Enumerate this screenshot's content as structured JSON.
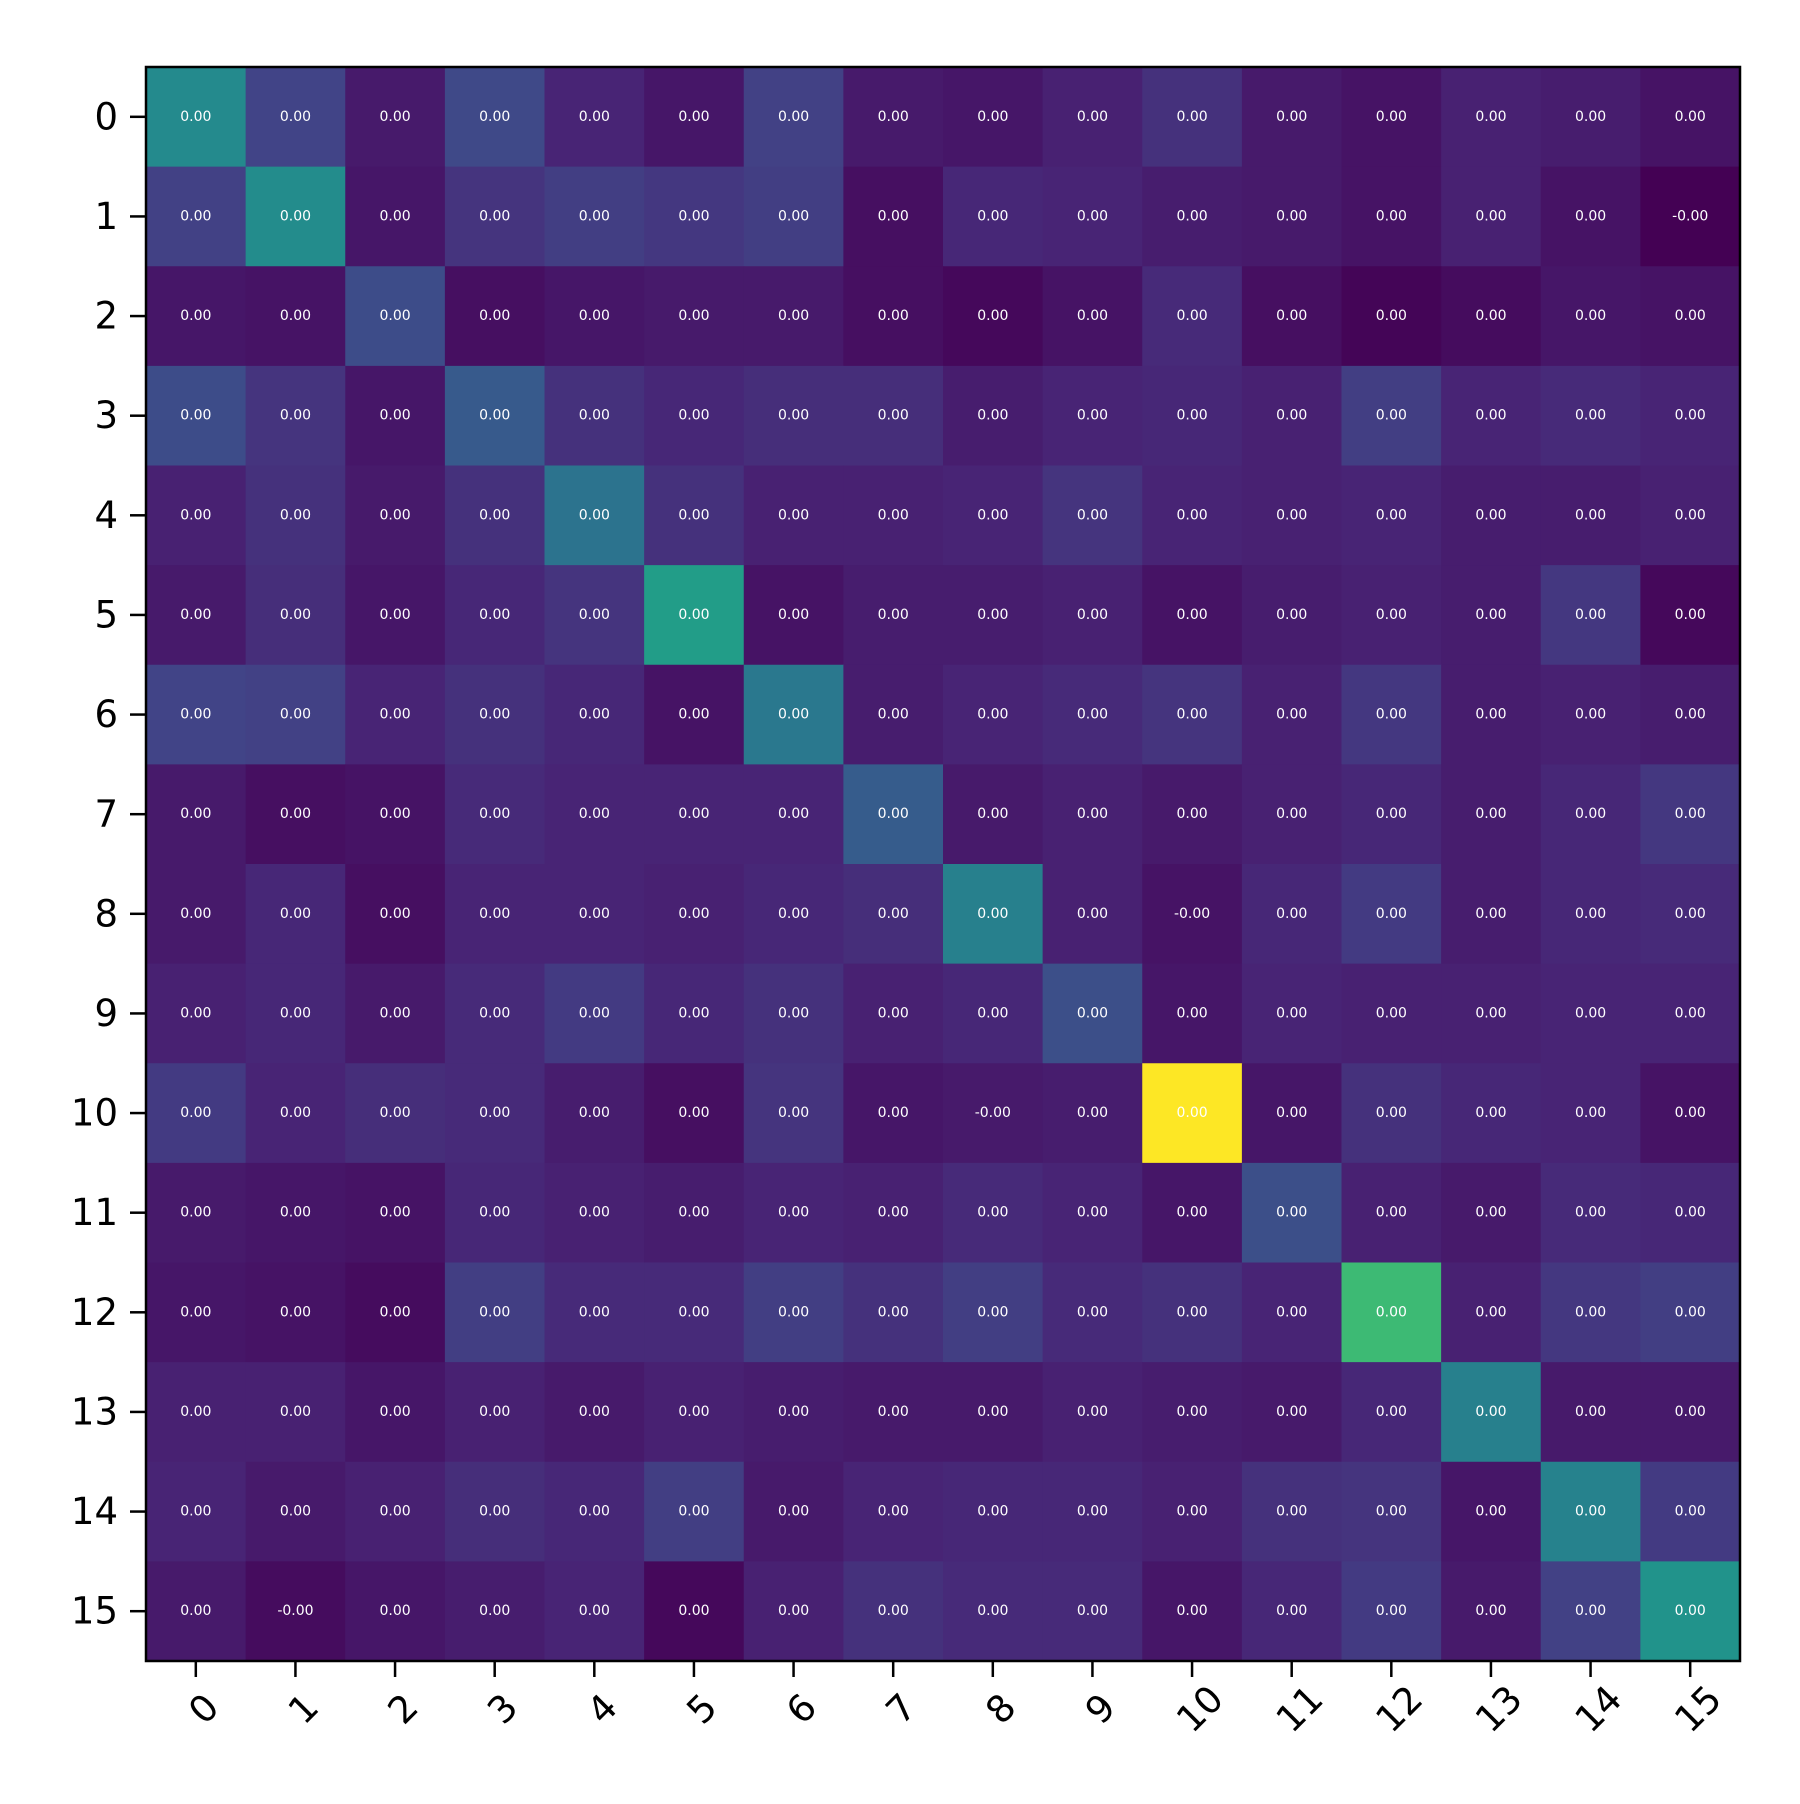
{
  "chart_data": {
    "type": "heatmap",
    "title": "",
    "xlabel": "",
    "ylabel": "",
    "x_tick_labels": [
      "0",
      "1",
      "2",
      "3",
      "4",
      "5",
      "6",
      "7",
      "8",
      "9",
      "10",
      "11",
      "12",
      "13",
      "14",
      "15"
    ],
    "y_tick_labels": [
      "0",
      "1",
      "2",
      "3",
      "4",
      "5",
      "6",
      "7",
      "8",
      "9",
      "10",
      "11",
      "12",
      "13",
      "14",
      "15"
    ],
    "x_tick_rotation_deg": 45,
    "colormap": "viridis",
    "colorbar": false,
    "grid": false,
    "value_range": [
      0,
      1
    ],
    "cell_labels": [
      [
        "0.00",
        "0.00",
        "0.00",
        "0.00",
        "0.00",
        "0.00",
        "0.00",
        "0.00",
        "0.00",
        "0.00",
        "0.00",
        "0.00",
        "0.00",
        "0.00",
        "0.00",
        "0.00"
      ],
      [
        "0.00",
        "0.00",
        "0.00",
        "0.00",
        "0.00",
        "0.00",
        "0.00",
        "0.00",
        "0.00",
        "0.00",
        "0.00",
        "0.00",
        "0.00",
        "0.00",
        "0.00",
        "-0.00"
      ],
      [
        "0.00",
        "0.00",
        "0.00",
        "0.00",
        "0.00",
        "0.00",
        "0.00",
        "0.00",
        "0.00",
        "0.00",
        "0.00",
        "0.00",
        "0.00",
        "0.00",
        "0.00",
        "0.00"
      ],
      [
        "0.00",
        "0.00",
        "0.00",
        "0.00",
        "0.00",
        "0.00",
        "0.00",
        "0.00",
        "0.00",
        "0.00",
        "0.00",
        "0.00",
        "0.00",
        "0.00",
        "0.00",
        "0.00"
      ],
      [
        "0.00",
        "0.00",
        "0.00",
        "0.00",
        "0.00",
        "0.00",
        "0.00",
        "0.00",
        "0.00",
        "0.00",
        "0.00",
        "0.00",
        "0.00",
        "0.00",
        "0.00",
        "0.00"
      ],
      [
        "0.00",
        "0.00",
        "0.00",
        "0.00",
        "0.00",
        "0.00",
        "0.00",
        "0.00",
        "0.00",
        "0.00",
        "0.00",
        "0.00",
        "0.00",
        "0.00",
        "0.00",
        "0.00"
      ],
      [
        "0.00",
        "0.00",
        "0.00",
        "0.00",
        "0.00",
        "0.00",
        "0.00",
        "0.00",
        "0.00",
        "0.00",
        "0.00",
        "0.00",
        "0.00",
        "0.00",
        "0.00",
        "0.00"
      ],
      [
        "0.00",
        "0.00",
        "0.00",
        "0.00",
        "0.00",
        "0.00",
        "0.00",
        "0.00",
        "0.00",
        "0.00",
        "0.00",
        "0.00",
        "0.00",
        "0.00",
        "0.00",
        "0.00"
      ],
      [
        "0.00",
        "0.00",
        "0.00",
        "0.00",
        "0.00",
        "0.00",
        "0.00",
        "0.00",
        "0.00",
        "0.00",
        "-0.00",
        "0.00",
        "0.00",
        "0.00",
        "0.00",
        "0.00"
      ],
      [
        "0.00",
        "0.00",
        "0.00",
        "0.00",
        "0.00",
        "0.00",
        "0.00",
        "0.00",
        "0.00",
        "0.00",
        "0.00",
        "0.00",
        "0.00",
        "0.00",
        "0.00",
        "0.00"
      ],
      [
        "0.00",
        "0.00",
        "0.00",
        "0.00",
        "0.00",
        "0.00",
        "0.00",
        "0.00",
        "-0.00",
        "0.00",
        "0.00",
        "0.00",
        "0.00",
        "0.00",
        "0.00",
        "0.00"
      ],
      [
        "0.00",
        "0.00",
        "0.00",
        "0.00",
        "0.00",
        "0.00",
        "0.00",
        "0.00",
        "0.00",
        "0.00",
        "0.00",
        "0.00",
        "0.00",
        "0.00",
        "0.00",
        "0.00"
      ],
      [
        "0.00",
        "0.00",
        "0.00",
        "0.00",
        "0.00",
        "0.00",
        "0.00",
        "0.00",
        "0.00",
        "0.00",
        "0.00",
        "0.00",
        "0.00",
        "0.00",
        "0.00",
        "0.00"
      ],
      [
        "0.00",
        "0.00",
        "0.00",
        "0.00",
        "0.00",
        "0.00",
        "0.00",
        "0.00",
        "0.00",
        "0.00",
        "0.00",
        "0.00",
        "0.00",
        "0.00",
        "0.00",
        "0.00"
      ],
      [
        "0.00",
        "0.00",
        "0.00",
        "0.00",
        "0.00",
        "0.00",
        "0.00",
        "0.00",
        "0.00",
        "0.00",
        "0.00",
        "0.00",
        "0.00",
        "0.00",
        "0.00",
        "0.00"
      ],
      [
        "0.00",
        "-0.00",
        "0.00",
        "0.00",
        "0.00",
        "0.00",
        "0.00",
        "0.00",
        "0.00",
        "0.00",
        "0.00",
        "0.00",
        "0.00",
        "0.00",
        "0.00",
        "0.00"
      ]
    ],
    "relative_intensity": [
      [
        0.47,
        0.2,
        0.07,
        0.22,
        0.1,
        0.06,
        0.19,
        0.07,
        0.06,
        0.09,
        0.14,
        0.07,
        0.05,
        0.09,
        0.08,
        0.05
      ],
      [
        0.19,
        0.48,
        0.06,
        0.15,
        0.18,
        0.16,
        0.18,
        0.04,
        0.11,
        0.1,
        0.08,
        0.07,
        0.05,
        0.09,
        0.05,
        0.0
      ],
      [
        0.06,
        0.05,
        0.23,
        0.04,
        0.06,
        0.07,
        0.07,
        0.04,
        0.02,
        0.05,
        0.12,
        0.04,
        0.01,
        0.03,
        0.06,
        0.05
      ],
      [
        0.23,
        0.15,
        0.06,
        0.28,
        0.14,
        0.11,
        0.13,
        0.13,
        0.08,
        0.1,
        0.11,
        0.09,
        0.18,
        0.1,
        0.12,
        0.1
      ],
      [
        0.09,
        0.14,
        0.07,
        0.14,
        0.38,
        0.14,
        0.09,
        0.09,
        0.1,
        0.15,
        0.1,
        0.09,
        0.1,
        0.08,
        0.08,
        0.09
      ],
      [
        0.07,
        0.13,
        0.06,
        0.11,
        0.15,
        0.55,
        0.05,
        0.08,
        0.08,
        0.09,
        0.05,
        0.08,
        0.09,
        0.08,
        0.16,
        0.02
      ],
      [
        0.2,
        0.19,
        0.1,
        0.14,
        0.11,
        0.05,
        0.4,
        0.08,
        0.1,
        0.12,
        0.15,
        0.09,
        0.16,
        0.08,
        0.09,
        0.08
      ],
      [
        0.07,
        0.04,
        0.05,
        0.12,
        0.1,
        0.1,
        0.1,
        0.29,
        0.07,
        0.09,
        0.07,
        0.09,
        0.11,
        0.08,
        0.11,
        0.16
      ],
      [
        0.07,
        0.11,
        0.04,
        0.1,
        0.1,
        0.09,
        0.11,
        0.13,
        0.43,
        0.09,
        0.05,
        0.11,
        0.17,
        0.08,
        0.11,
        0.12
      ],
      [
        0.09,
        0.11,
        0.07,
        0.12,
        0.17,
        0.11,
        0.14,
        0.09,
        0.11,
        0.24,
        0.06,
        0.1,
        0.09,
        0.09,
        0.1,
        0.1
      ],
      [
        0.17,
        0.1,
        0.13,
        0.12,
        0.08,
        0.04,
        0.15,
        0.06,
        0.07,
        0.08,
        1.0,
        0.06,
        0.14,
        0.11,
        0.1,
        0.05
      ],
      [
        0.07,
        0.06,
        0.05,
        0.11,
        0.09,
        0.08,
        0.1,
        0.09,
        0.12,
        0.1,
        0.06,
        0.24,
        0.09,
        0.07,
        0.12,
        0.11
      ],
      [
        0.06,
        0.05,
        0.03,
        0.18,
        0.12,
        0.12,
        0.18,
        0.14,
        0.18,
        0.12,
        0.14,
        0.1,
        0.68,
        0.09,
        0.16,
        0.18
      ],
      [
        0.09,
        0.09,
        0.06,
        0.09,
        0.07,
        0.09,
        0.08,
        0.07,
        0.07,
        0.09,
        0.08,
        0.07,
        0.11,
        0.43,
        0.07,
        0.07
      ],
      [
        0.1,
        0.07,
        0.09,
        0.13,
        0.11,
        0.18,
        0.07,
        0.1,
        0.11,
        0.11,
        0.09,
        0.14,
        0.15,
        0.06,
        0.44,
        0.17
      ],
      [
        0.07,
        0.03,
        0.06,
        0.08,
        0.1,
        0.02,
        0.09,
        0.14,
        0.12,
        0.12,
        0.06,
        0.11,
        0.17,
        0.07,
        0.19,
        0.51
      ]
    ]
  }
}
